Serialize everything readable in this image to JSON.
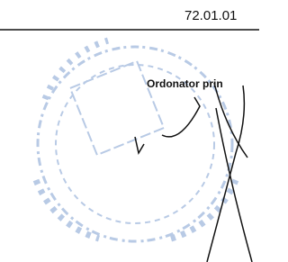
{
  "document": {
    "code": "72.01.01",
    "signatory_label": "Ordonator prin"
  }
}
